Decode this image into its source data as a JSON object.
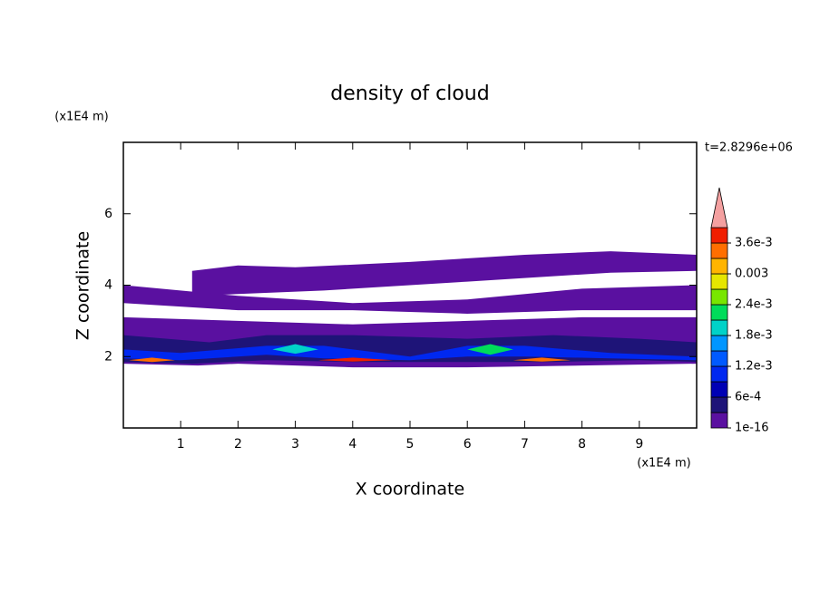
{
  "chart_data": {
    "type": "contour",
    "title": "density of cloud",
    "x_label": "X coordinate",
    "y_label": "Z coordinate",
    "x_unit": "(x1E4 m)",
    "y_unit": "(x1E4 m)",
    "annotation": "t=2.8296e+06",
    "xlim": [
      0,
      10
    ],
    "ylim": [
      0,
      8
    ],
    "xticks": [
      1,
      2,
      3,
      4,
      5,
      6,
      7,
      8,
      9
    ],
    "yticks": [
      2,
      4,
      6
    ],
    "colorbar": {
      "levels": [
        0,
        0.0003,
        0.0006,
        0.0009,
        0.0012,
        0.0015,
        0.0018,
        0.0021,
        0.0024,
        0.0027,
        0.003,
        0.0033,
        0.0036,
        0.0039
      ],
      "colors": [
        "#5a10a0",
        "#1e1478",
        "#0000b4",
        "#0028f0",
        "#005aff",
        "#0096ff",
        "#00d2c8",
        "#00dc5a",
        "#78e600",
        "#e6e600",
        "#ffb400",
        "#ff6e00",
        "#f01e00"
      ],
      "over_color": "#f4a0a0",
      "ticks": [
        {
          "value": 1e-16,
          "label": "1e-16"
        },
        {
          "value": 0.0006,
          "label": "6e-4"
        },
        {
          "value": 0.0012,
          "label": "1.2e-3"
        },
        {
          "value": 0.0018,
          "label": "1.8e-3"
        },
        {
          "value": 0.0024,
          "label": "2.4e-3"
        },
        0.003,
        {
          "value": 0.0036,
          "label": "3.6e-3"
        }
      ]
    },
    "regions": [
      {
        "level": 0,
        "x": [
          1.2,
          2.0,
          3.0,
          5.0,
          7.0,
          8.5,
          10,
          10,
          8.5,
          7.0,
          6.0,
          5.0,
          3.5,
          2.0,
          1.2
        ],
        "z": [
          4.4,
          4.55,
          4.5,
          4.65,
          4.85,
          4.95,
          4.85,
          4.4,
          4.35,
          4.2,
          4.1,
          4.0,
          3.85,
          3.75,
          3.7
        ]
      },
      {
        "level": 0,
        "x": [
          0,
          2,
          4,
          6,
          8,
          10,
          10,
          8,
          6,
          4,
          2,
          0
        ],
        "z": [
          4.0,
          3.7,
          3.5,
          3.6,
          3.9,
          4.0,
          3.3,
          3.3,
          3.2,
          3.3,
          3.3,
          3.5
        ]
      },
      {
        "level": 0,
        "x": [
          0,
          2,
          4,
          6,
          8,
          10,
          10,
          8,
          6,
          4,
          2,
          1.3,
          0
        ],
        "z": [
          3.1,
          3.0,
          2.9,
          3.0,
          3.1,
          3.1,
          1.8,
          1.75,
          1.7,
          1.7,
          1.8,
          1.75,
          1.8
        ]
      },
      {
        "level": 0.0003,
        "x": [
          0,
          1.5,
          2.5,
          4,
          6,
          7.5,
          9,
          10,
          10,
          9,
          7.5,
          6,
          4,
          2.5,
          1.2,
          0
        ],
        "z": [
          2.6,
          2.4,
          2.6,
          2.6,
          2.5,
          2.6,
          2.5,
          2.4,
          1.85,
          1.9,
          1.85,
          1.85,
          1.85,
          1.9,
          1.8,
          1.85
        ]
      },
      {
        "level": 0.0009,
        "x": [
          0,
          1,
          2.5,
          3.5,
          5,
          6,
          7,
          8.5,
          10,
          10,
          8.5,
          7,
          6,
          5,
          3.5,
          2.5,
          1,
          0
        ],
        "z": [
          2.2,
          2.1,
          2.3,
          2.3,
          2.0,
          2.3,
          2.3,
          2.1,
          2.0,
          1.9,
          1.95,
          2.0,
          2.0,
          1.9,
          1.95,
          2.05,
          1.9,
          1.95
        ]
      },
      {
        "level": 0.0018,
        "x": [
          2.6,
          3.0,
          3.4,
          3.0
        ],
        "z": [
          2.2,
          2.35,
          2.2,
          2.08
        ]
      },
      {
        "level": 0.0021,
        "x": [
          6.0,
          6.4,
          6.8,
          6.4
        ],
        "z": [
          2.2,
          2.35,
          2.2,
          2.05
        ]
      },
      {
        "level": 0.0033,
        "x": [
          0.1,
          0.5,
          0.9,
          0.5
        ],
        "z": [
          1.9,
          1.97,
          1.9,
          1.85
        ]
      },
      {
        "level": 0.0036,
        "x": [
          3.4,
          4.0,
          4.7,
          4.0
        ],
        "z": [
          1.9,
          1.97,
          1.9,
          1.86
        ]
      },
      {
        "level": 0.0033,
        "x": [
          6.8,
          7.3,
          7.8,
          7.3
        ],
        "z": [
          1.9,
          1.97,
          1.9,
          1.86
        ]
      }
    ]
  }
}
